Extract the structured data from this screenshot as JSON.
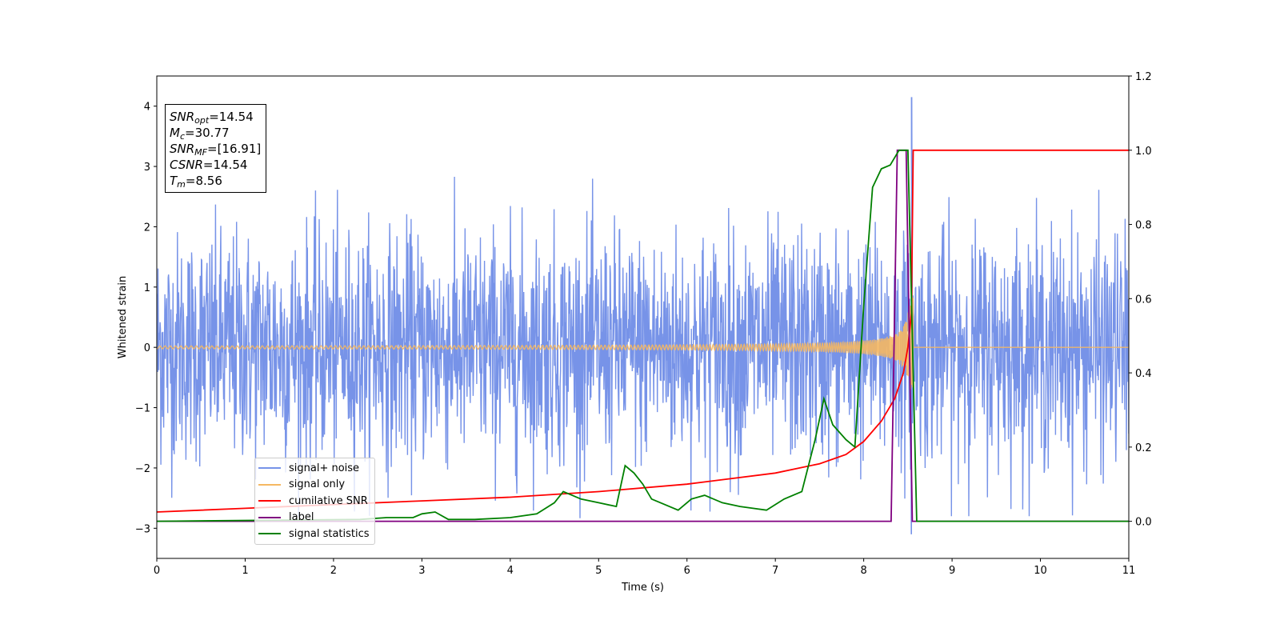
{
  "chart_data": {
    "type": "line",
    "xlabel": "Time (s)",
    "ylabel": "Whitened strain",
    "xlim": [
      0,
      11
    ],
    "ylim_left": [
      -3.5,
      4.5
    ],
    "ylim_right": [
      -0.1,
      1.2
    ],
    "x_ticks": [
      "0",
      "1",
      "2",
      "3",
      "4",
      "5",
      "6",
      "7",
      "8",
      "9",
      "10",
      "11"
    ],
    "y_left_ticks": [
      "−3",
      "−2",
      "−1",
      "0",
      "1",
      "2",
      "3",
      "4"
    ],
    "y_right_ticks": [
      "0.0",
      "0.2",
      "0.4",
      "0.6",
      "0.8",
      "1.0",
      "1.2"
    ],
    "legend_placement": "lower-left",
    "annotation": {
      "snr_opt": "=14.54",
      "mc": "=30.77",
      "snr_mf": "=[16.91]",
      "csnr": "=14.54",
      "tm": "=8.56"
    },
    "series": [
      {
        "name": "signal+ noise",
        "axis": "left",
        "color": "#7793e8",
        "description_x_range": [
          0,
          11
        ],
        "approx_abs_range": 2.8,
        "spike_x": 8.54,
        "spike_y": [
          4.15,
          -3.1
        ]
      },
      {
        "name": "signal only",
        "axis": "left",
        "color": "#f5b862",
        "chirp_start": 0,
        "chirp_end": 8.56,
        "amplitude_start": 0.01,
        "amplitude_peak": 1.0
      },
      {
        "name": "cumilative SNR",
        "axis": "right",
        "color": "#ff0000",
        "x": [
          0,
          1,
          2,
          3,
          4,
          5,
          6,
          7,
          7.5,
          7.8,
          8.0,
          8.2,
          8.35,
          8.45,
          8.5,
          8.54,
          8.56,
          8.6,
          11
        ],
        "values": [
          0.025,
          0.035,
          0.045,
          0.055,
          0.065,
          0.08,
          0.1,
          0.13,
          0.155,
          0.18,
          0.215,
          0.27,
          0.33,
          0.4,
          0.47,
          0.56,
          1.0,
          1.0,
          1.0
        ]
      },
      {
        "name": "label",
        "axis": "right",
        "color": "#800080",
        "x": [
          0,
          8.31,
          8.38,
          8.48,
          8.55,
          11
        ],
        "values": [
          0,
          0,
          1.0,
          1.0,
          0,
          0
        ]
      },
      {
        "name": "signal statistics",
        "axis": "right",
        "color": "#008000",
        "x": [
          0,
          2.3,
          2.6,
          2.9,
          3.0,
          3.15,
          3.3,
          3.6,
          4.0,
          4.3,
          4.5,
          4.6,
          4.7,
          4.8,
          5.0,
          5.2,
          5.3,
          5.4,
          5.5,
          5.6,
          5.7,
          5.9,
          6.05,
          6.2,
          6.4,
          6.6,
          6.9,
          7.1,
          7.3,
          7.45,
          7.55,
          7.65,
          7.8,
          7.9,
          8.0,
          8.1,
          8.2,
          8.3,
          8.4,
          8.5,
          8.6,
          8.62,
          11
        ],
        "values": [
          0.0,
          0.005,
          0.01,
          0.01,
          0.02,
          0.025,
          0.005,
          0.005,
          0.01,
          0.02,
          0.05,
          0.08,
          0.07,
          0.06,
          0.05,
          0.04,
          0.15,
          0.13,
          0.1,
          0.06,
          0.05,
          0.03,
          0.06,
          0.07,
          0.05,
          0.04,
          0.03,
          0.06,
          0.08,
          0.22,
          0.33,
          0.26,
          0.22,
          0.2,
          0.58,
          0.9,
          0.95,
          0.96,
          1.0,
          1.0,
          0.0,
          0.0,
          0.0
        ]
      }
    ]
  }
}
